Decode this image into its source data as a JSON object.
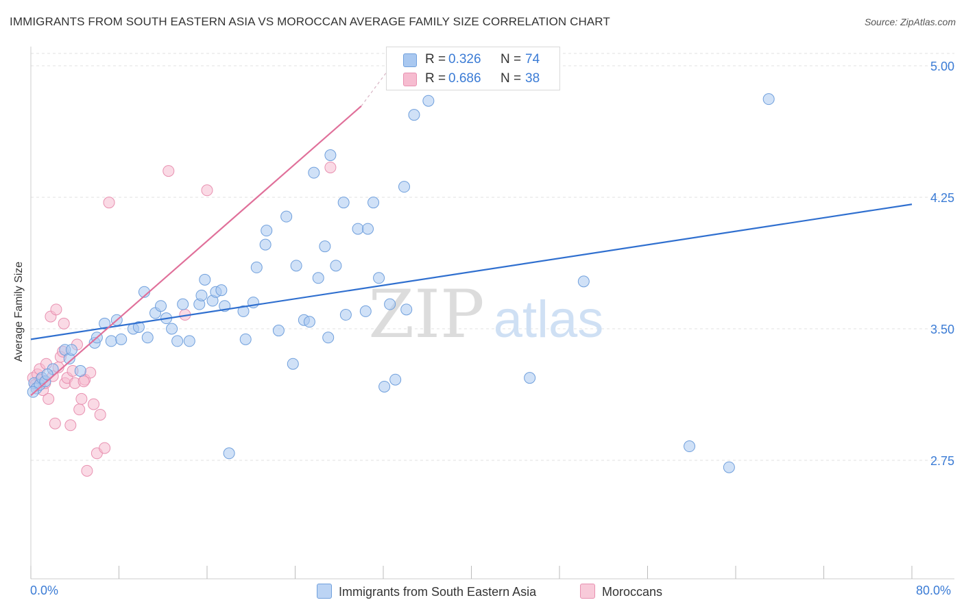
{
  "title": "IMMIGRANTS FROM SOUTH EASTERN ASIA VS MOROCCAN AVERAGE FAMILY SIZE CORRELATION CHART",
  "source": "Source: ZipAtlas.com",
  "watermark": {
    "zip": "ZIP",
    "atlas": "atlas"
  },
  "legend": {
    "rows": [
      {
        "r_label": "R =",
        "r_value": "0.326",
        "n_label": "N =",
        "n_value": "74"
      },
      {
        "r_label": "R =",
        "r_value": "0.686",
        "n_label": "N =",
        "n_value": "38"
      }
    ]
  },
  "bottom_legend": [
    "Immigrants from South Eastern Asia",
    "Moroccans"
  ],
  "x_axis": {
    "min_label": "0.0%",
    "max_label": "80.0%"
  },
  "chart_data": {
    "type": "scatter",
    "title": "IMMIGRANTS FROM SOUTH EASTERN ASIA VS MOROCCAN AVERAGE FAMILY SIZE CORRELATION CHART",
    "xlabel": "",
    "ylabel": "Average Family Size",
    "xlim": [
      0,
      80
    ],
    "ylim": [
      2.0,
      5.1
    ],
    "y_ticks": [
      2.75,
      3.5,
      4.25,
      5.0
    ],
    "y_tick_labels": [
      "2.75",
      "3.50",
      "4.25",
      "5.00"
    ],
    "grid": true,
    "legend_position": "top-center",
    "colors": {
      "blue_fill": "#a9c8f0",
      "blue_stroke": "#6f9fdc",
      "blue_line": "#2f6fcf",
      "pink_fill": "#f6bcd0",
      "pink_stroke": "#e890b0",
      "pink_line": "#e0709a",
      "value_text": "#3a7bd5"
    },
    "series": [
      {
        "name": "Immigrants from South Eastern Asia",
        "color": "#6f9fdc",
        "trend": {
          "x": [
            0,
            80
          ],
          "y": [
            3.44,
            4.21
          ]
        },
        "points": [
          [
            0.3,
            3.19
          ],
          [
            0.5,
            3.16
          ],
          [
            0.8,
            3.18
          ],
          [
            1.0,
            3.22
          ],
          [
            1.3,
            3.2
          ],
          [
            2.0,
            3.27
          ],
          [
            3.1,
            3.38
          ],
          [
            3.5,
            3.33
          ],
          [
            3.7,
            3.38
          ],
          [
            4.5,
            3.26
          ],
          [
            5.8,
            3.42
          ],
          [
            6.0,
            3.45
          ],
          [
            6.7,
            3.53
          ],
          [
            7.3,
            3.43
          ],
          [
            7.8,
            3.55
          ],
          [
            8.2,
            3.44
          ],
          [
            9.3,
            3.5
          ],
          [
            9.8,
            3.51
          ],
          [
            10.3,
            3.71
          ],
          [
            10.6,
            3.45
          ],
          [
            11.3,
            3.59
          ],
          [
            11.8,
            3.63
          ],
          [
            12.3,
            3.56
          ],
          [
            12.8,
            3.5
          ],
          [
            13.3,
            3.43
          ],
          [
            13.8,
            3.64
          ],
          [
            14.4,
            3.43
          ],
          [
            15.3,
            3.64
          ],
          [
            15.5,
            3.69
          ],
          [
            15.8,
            3.78
          ],
          [
            16.5,
            3.66
          ],
          [
            16.8,
            3.71
          ],
          [
            17.3,
            3.72
          ],
          [
            17.6,
            3.63
          ],
          [
            18.0,
            2.79
          ],
          [
            19.3,
            3.6
          ],
          [
            19.5,
            3.44
          ],
          [
            20.2,
            3.65
          ],
          [
            20.5,
            3.85
          ],
          [
            21.3,
            3.98
          ],
          [
            21.4,
            4.06
          ],
          [
            22.5,
            3.49
          ],
          [
            23.2,
            4.14
          ],
          [
            23.8,
            3.3
          ],
          [
            24.1,
            3.86
          ],
          [
            24.8,
            3.55
          ],
          [
            25.3,
            3.54
          ],
          [
            25.7,
            4.39
          ],
          [
            26.1,
            3.79
          ],
          [
            26.7,
            3.97
          ],
          [
            27.0,
            3.45
          ],
          [
            27.2,
            4.49
          ],
          [
            27.7,
            3.86
          ],
          [
            28.4,
            4.22
          ],
          [
            28.6,
            3.58
          ],
          [
            29.7,
            4.07
          ],
          [
            30.4,
            3.6
          ],
          [
            30.6,
            4.07
          ],
          [
            31.1,
            4.22
          ],
          [
            31.6,
            3.79
          ],
          [
            32.1,
            3.17
          ],
          [
            32.6,
            3.64
          ],
          [
            33.1,
            3.21
          ],
          [
            33.9,
            4.31
          ],
          [
            34.1,
            3.61
          ],
          [
            34.8,
            4.72
          ],
          [
            36.1,
            4.8
          ],
          [
            45.3,
            3.22
          ],
          [
            50.2,
            3.77
          ],
          [
            59.8,
            2.83
          ],
          [
            63.4,
            2.71
          ],
          [
            67.0,
            4.81
          ],
          [
            1.5,
            3.24
          ],
          [
            0.2,
            3.14
          ]
        ]
      },
      {
        "name": "Moroccans",
        "color": "#e890b0",
        "trend": {
          "x": [
            0,
            30
          ],
          "y": [
            3.12,
            4.77
          ]
        },
        "trend_dashed": {
          "x": [
            30,
            32.5
          ],
          "y": [
            4.77,
            4.98
          ]
        },
        "points": [
          [
            0.2,
            3.22
          ],
          [
            0.4,
            3.18
          ],
          [
            0.6,
            3.24
          ],
          [
            0.9,
            3.21
          ],
          [
            1.1,
            3.15
          ],
          [
            1.3,
            3.19
          ],
          [
            1.6,
            3.1
          ],
          [
            1.8,
            3.57
          ],
          [
            2.0,
            3.23
          ],
          [
            2.2,
            2.96
          ],
          [
            2.5,
            3.28
          ],
          [
            2.7,
            3.34
          ],
          [
            2.9,
            3.37
          ],
          [
            3.1,
            3.19
          ],
          [
            3.3,
            3.22
          ],
          [
            3.6,
            2.95
          ],
          [
            3.8,
            3.26
          ],
          [
            4.0,
            3.19
          ],
          [
            4.2,
            3.41
          ],
          [
            4.4,
            3.04
          ],
          [
            4.6,
            3.1
          ],
          [
            4.9,
            3.21
          ],
          [
            5.1,
            2.69
          ],
          [
            5.4,
            3.25
          ],
          [
            5.7,
            3.07
          ],
          [
            6.0,
            2.79
          ],
          [
            6.3,
            3.01
          ],
          [
            6.7,
            2.82
          ],
          [
            7.1,
            4.22
          ],
          [
            12.5,
            4.4
          ],
          [
            14.0,
            3.58
          ],
          [
            16.0,
            4.29
          ],
          [
            27.2,
            4.42
          ],
          [
            0.8,
            3.27
          ],
          [
            1.4,
            3.3
          ],
          [
            2.3,
            3.61
          ],
          [
            3.0,
            3.53
          ],
          [
            4.8,
            3.2
          ]
        ]
      }
    ]
  }
}
